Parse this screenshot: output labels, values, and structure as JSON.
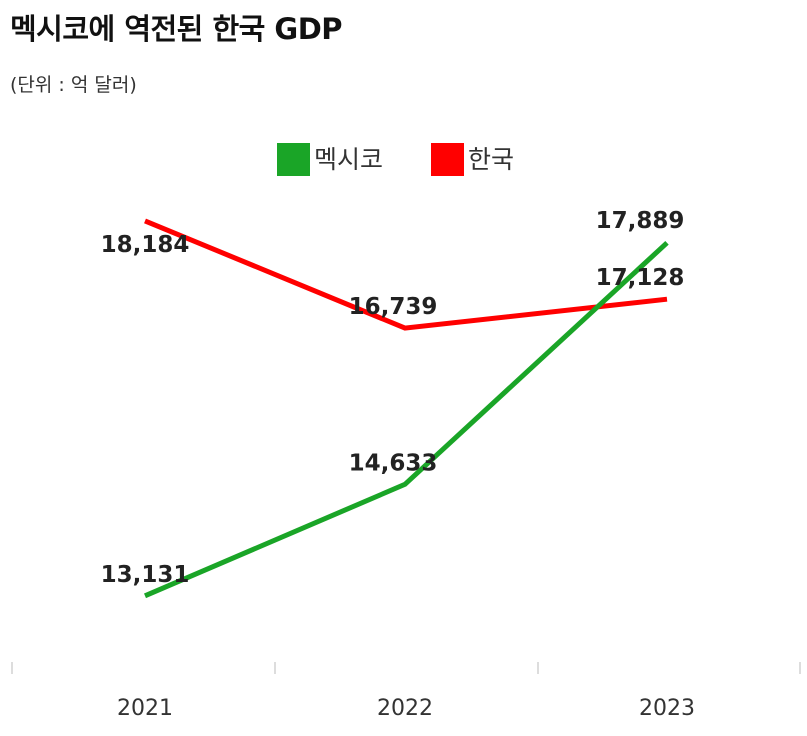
{
  "chart_data": {
    "type": "line",
    "title": "멕시코에 역전된 한국 GDP",
    "subtitle": "(단위 : 억 달러)",
    "categories": [
      "2021",
      "2022",
      "2023"
    ],
    "series": [
      {
        "name": "멕시코",
        "color": "#1aa527",
        "values": [
          13131,
          14633,
          17889
        ],
        "labels": [
          "13,131",
          "14,633",
          "17,889"
        ]
      },
      {
        "name": "한국",
        "color": "#ff0000",
        "values": [
          18184,
          16739,
          17128
        ],
        "labels": [
          "18,184",
          "16,739",
          "17,128"
        ]
      }
    ],
    "ylim": [
      12400,
      18600
    ],
    "legend": "top-center",
    "grid": false
  }
}
